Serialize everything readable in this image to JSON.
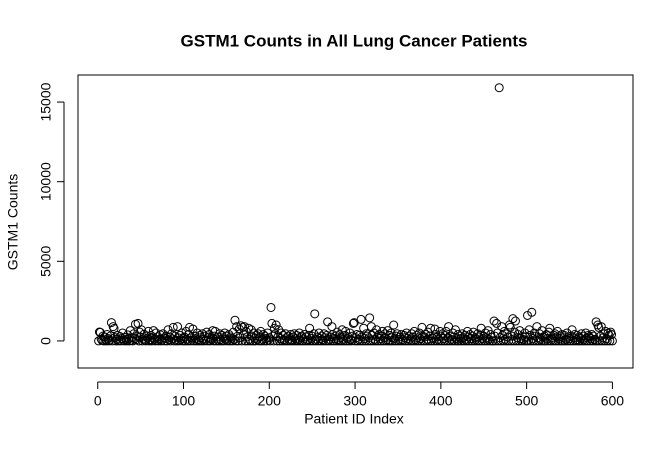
{
  "chart_data": {
    "type": "scatter",
    "title": "GSTM1 Counts in All Lung Cancer Patients",
    "x_label": "Patient ID Index",
    "y_label": "GSTM1 Counts",
    "color": "#000000",
    "box": true,
    "xlim": [
      -23,
      624
    ],
    "ylim": [
      -1700,
      16700
    ],
    "xticks": [
      0,
      100,
      200,
      300,
      400,
      500,
      600
    ],
    "yticks": [
      0,
      5000,
      10000,
      15000
    ],
    "x": [
      1,
      2,
      3,
      4,
      5,
      6,
      7,
      8,
      9,
      10,
      11,
      12,
      13,
      14,
      15,
      16,
      17,
      18,
      19,
      20,
      21,
      22,
      23,
      24,
      25,
      26,
      27,
      28,
      29,
      30,
      31,
      32,
      33,
      34,
      35,
      36,
      37,
      38,
      39,
      40,
      41,
      42,
      43,
      44,
      45,
      46,
      47,
      48,
      49,
      50,
      51,
      52,
      53,
      54,
      55,
      56,
      57,
      58,
      59,
      60,
      61,
      62,
      63,
      64,
      65,
      66,
      67,
      68,
      69,
      70,
      71,
      72,
      73,
      74,
      75,
      76,
      77,
      78,
      79,
      80,
      81,
      82,
      83,
      84,
      85,
      86,
      87,
      88,
      89,
      90,
      91,
      92,
      93,
      94,
      95,
      96,
      97,
      98,
      99,
      100,
      101,
      102,
      103,
      104,
      105,
      106,
      107,
      108,
      109,
      110,
      111,
      112,
      113,
      114,
      115,
      116,
      117,
      118,
      119,
      120,
      121,
      122,
      123,
      124,
      125,
      126,
      127,
      128,
      129,
      130,
      131,
      132,
      133,
      134,
      135,
      136,
      137,
      138,
      139,
      140,
      141,
      142,
      143,
      144,
      145,
      146,
      147,
      148,
      149,
      150,
      151,
      152,
      153,
      154,
      155,
      156,
      157,
      158,
      159,
      160,
      161,
      162,
      163,
      164,
      165,
      166,
      167,
      168,
      169,
      170,
      171,
      172,
      173,
      174,
      175,
      176,
      177,
      178,
      179,
      180,
      181,
      182,
      183,
      184,
      185,
      186,
      187,
      188,
      189,
      190,
      191,
      192,
      193,
      194,
      195,
      196,
      197,
      198,
      199,
      200,
      201,
      202,
      203,
      204,
      205,
      206,
      207,
      208,
      209,
      210,
      211,
      212,
      213,
      214,
      215,
      216,
      217,
      218,
      219,
      220,
      221,
      222,
      223,
      224,
      225,
      226,
      227,
      228,
      229,
      230,
      231,
      232,
      233,
      234,
      235,
      236,
      237,
      238,
      239,
      240,
      241,
      242,
      243,
      244,
      245,
      246,
      247,
      248,
      249,
      250,
      251,
      252,
      253,
      254,
      255,
      256,
      257,
      258,
      259,
      260,
      261,
      262,
      263,
      264,
      265,
      266,
      267,
      268,
      269,
      270,
      271,
      272,
      273,
      274,
      275,
      276,
      277,
      278,
      279,
      280,
      281,
      282,
      283,
      284,
      285,
      286,
      287,
      288,
      289,
      290,
      291,
      292,
      293,
      294,
      295,
      296,
      297,
      298,
      299,
      300,
      301,
      302,
      303,
      304,
      305,
      306,
      307,
      308,
      309,
      310,
      311,
      312,
      313,
      314,
      315,
      316,
      317,
      318,
      319,
      320,
      321,
      322,
      323,
      324,
      325,
      326,
      327,
      328,
      329,
      330,
      331,
      332,
      333,
      334,
      335,
      336,
      337,
      338,
      339,
      340,
      341,
      342,
      343,
      344,
      345,
      346,
      347,
      348,
      349,
      350,
      351,
      352,
      353,
      354,
      355,
      356,
      357,
      358,
      359,
      360,
      361,
      362,
      363,
      364,
      365,
      366,
      367,
      368,
      369,
      370,
      371,
      372,
      373,
      374,
      375,
      376,
      377,
      378,
      379,
      380,
      381,
      382,
      383,
      384,
      385,
      386,
      387,
      388,
      389,
      390,
      391,
      392,
      393,
      394,
      395,
      396,
      397,
      398,
      399,
      400,
      401,
      402,
      403,
      404,
      405,
      406,
      407,
      408,
      409,
      410,
      411,
      412,
      413,
      414,
      415,
      416,
      417,
      418,
      419,
      420,
      421,
      422,
      423,
      424,
      425,
      426,
      427,
      428,
      429,
      430,
      431,
      432,
      433,
      434,
      435,
      436,
      437,
      438,
      439,
      440,
      441,
      442,
      443,
      444,
      445,
      446,
      447,
      448,
      449,
      450,
      451,
      452,
      453,
      454,
      455,
      456,
      457,
      458,
      459,
      460,
      461,
      462,
      463,
      464,
      465,
      466,
      467,
      468,
      469,
      470,
      471,
      472,
      473,
      474,
      475,
      476,
      477,
      478,
      479,
      480,
      481,
      482,
      483,
      484,
      485,
      486,
      487,
      488,
      489,
      490,
      491,
      492,
      493,
      494,
      495,
      496,
      497,
      498,
      499,
      500,
      501,
      502,
      503,
      504,
      505,
      506,
      507,
      508,
      509,
      510,
      511,
      512,
      513,
      514,
      515,
      516,
      517,
      518,
      519,
      520,
      521,
      522,
      523,
      524,
      525,
      526,
      527,
      528,
      529,
      530,
      531,
      532,
      533,
      534,
      535,
      536,
      537,
      538,
      539,
      540,
      541,
      542,
      543,
      544,
      545,
      546,
      547,
      548,
      549,
      550,
      551,
      552,
      553,
      554,
      555,
      556,
      557,
      558,
      559,
      560,
      561,
      562,
      563,
      564,
      565,
      566,
      567,
      568,
      569,
      570,
      571,
      572,
      573,
      574,
      575,
      576,
      577,
      578,
      579,
      580,
      581,
      582,
      583,
      584,
      585,
      586,
      587,
      588,
      589,
      590,
      591,
      592,
      593,
      594,
      595,
      596,
      597,
      598,
      599,
      600
    ],
    "values": [
      0,
      560,
      540,
      120,
      30,
      300,
      0,
      250,
      80,
      0,
      400,
      150,
      0,
      60,
      320,
      1150,
      0,
      900,
      780,
      210,
      0,
      100,
      350,
      0,
      40,
      280,
      0,
      150,
      500,
      60,
      0,
      220,
      90,
      0,
      380,
      120,
      0,
      650,
      30,
      200,
      0,
      450,
      150,
      1050,
      80,
      300,
      1100,
      0,
      550,
      250,
      700,
      0,
      120,
      420,
      50,
      0,
      300,
      180,
      600,
      0,
      80,
      350,
      0,
      200,
      650,
      100,
      0,
      500,
      40,
      260,
      0,
      120,
      380,
      0,
      60,
      450,
      200,
      0,
      150,
      300,
      0,
      700,
      80,
      250,
      0,
      450,
      120,
      850,
      0,
      300,
      60,
      0,
      900,
      200,
      0,
      350,
      80,
      500,
      0,
      150,
      250,
      0,
      600,
      100,
      0,
      400,
      850,
      0,
      200,
      60,
      750,
      0,
      300,
      150,
      0,
      500,
      80,
      0,
      350,
      200,
      0,
      450,
      100,
      0,
      300,
      60,
      550,
      0,
      200,
      400,
      0,
      150,
      80,
      650,
      0,
      300,
      600,
      0,
      120,
      250,
      0,
      450,
      80,
      0,
      350,
      200,
      0,
      500,
      100,
      300,
      0,
      60,
      400,
      0,
      250,
      150,
      0,
      550,
      80,
      1300,
      0,
      900,
      300,
      0,
      750,
      200,
      950,
      0,
      850,
      400,
      900,
      0,
      600,
      250,
      0,
      800,
      100,
      0,
      700,
      300,
      0,
      500,
      150,
      0,
      350,
      80,
      450,
      0,
      250,
      600,
      0,
      100,
      400,
      0,
      300,
      150,
      0,
      500,
      60,
      200,
      0,
      2100,
      1100,
      300,
      0,
      800,
      450,
      1000,
      0,
      250,
      700,
      0,
      150,
      500,
      0,
      350,
      80,
      0,
      450,
      200,
      0,
      300,
      100,
      0,
      400,
      50,
      0,
      250,
      450,
      0,
      150,
      350,
      0,
      80,
      500,
      0,
      200,
      300,
      0,
      120,
      400,
      0,
      250,
      50,
      0,
      350,
      800,
      0,
      150,
      300,
      0,
      450,
      1700,
      0,
      100,
      250,
      0,
      500,
      150,
      0,
      300,
      80,
      0,
      450,
      200,
      0,
      350,
      1200,
      0,
      100,
      250,
      0,
      900,
      400,
      0,
      150,
      300,
      0,
      550,
      80,
      0,
      400,
      200,
      0,
      700,
      100,
      0,
      350,
      600,
      0,
      150,
      250,
      0,
      500,
      80,
      0,
      300,
      1100,
      1150,
      0,
      200,
      400,
      0,
      100,
      350,
      0,
      1350,
      250,
      0,
      800,
      150,
      0,
      450,
      300,
      0,
      200,
      1450,
      0,
      900,
      350,
      0,
      500,
      100,
      0,
      700,
      250,
      0,
      400,
      150,
      0,
      300,
      600,
      0,
      200,
      450,
      0,
      80,
      650,
      0,
      350,
      0,
      500,
      200,
      0,
      1000,
      150,
      0,
      300,
      450,
      0,
      100,
      250,
      0,
      400,
      80,
      0,
      350,
      200,
      0,
      500,
      150,
      0,
      300,
      100,
      0,
      450,
      250,
      0,
      600,
      80,
      0,
      350,
      200,
      0,
      500,
      150,
      0,
      850,
      300,
      0,
      250,
      400,
      0,
      100,
      550,
      0,
      300,
      800,
      0,
      200,
      150,
      0,
      750,
      400,
      0,
      250,
      100,
      0,
      600,
      300,
      0,
      450,
      150,
      0,
      350,
      600,
      0,
      200,
      900,
      0,
      300,
      100,
      0,
      500,
      250,
      0,
      700,
      150,
      0,
      400,
      0,
      300,
      150,
      0,
      450,
      200,
      0,
      350,
      100,
      0,
      600,
      250,
      0,
      400,
      150,
      0,
      300,
      550,
      0,
      200,
      100,
      0,
      450,
      250,
      0,
      350,
      800,
      0,
      150,
      300,
      0,
      500,
      200,
      0,
      650,
      100,
      0,
      400,
      250,
      0,
      0,
      1250,
      300,
      0,
      1100,
      500,
      0,
      15900,
      200,
      0,
      900,
      350,
      0,
      600,
      100,
      0,
      450,
      250,
      0,
      1000,
      850,
      0,
      300,
      1400,
      0,
      550,
      1250,
      0,
      200,
      400,
      0,
      650,
      150,
      0,
      300,
      100,
      0,
      500,
      250,
      0,
      1600,
      0,
      700,
      350,
      0,
      1800,
      150,
      0,
      500,
      300,
      0,
      900,
      200,
      0,
      450,
      100,
      0,
      650,
      250,
      0,
      300,
      0,
      400,
      150,
      0,
      550,
      800,
      0,
      200,
      100,
      0,
      350,
      450,
      0,
      250,
      600,
      0,
      150,
      300,
      0,
      400,
      0,
      200,
      350,
      0,
      100,
      500,
      0,
      250,
      150,
      0,
      300,
      700,
      0,
      200,
      400,
      0,
      80,
      350,
      0,
      250,
      0,
      150,
      450,
      0,
      300,
      100,
      0,
      500,
      200,
      0,
      350,
      250,
      0,
      150,
      400,
      0,
      300,
      100,
      0,
      1200,
      0,
      1000,
      850,
      0,
      300,
      900,
      0,
      200,
      450,
      0,
      600,
      150,
      0,
      500,
      350,
      0,
      550,
      400,
      0
    ]
  }
}
